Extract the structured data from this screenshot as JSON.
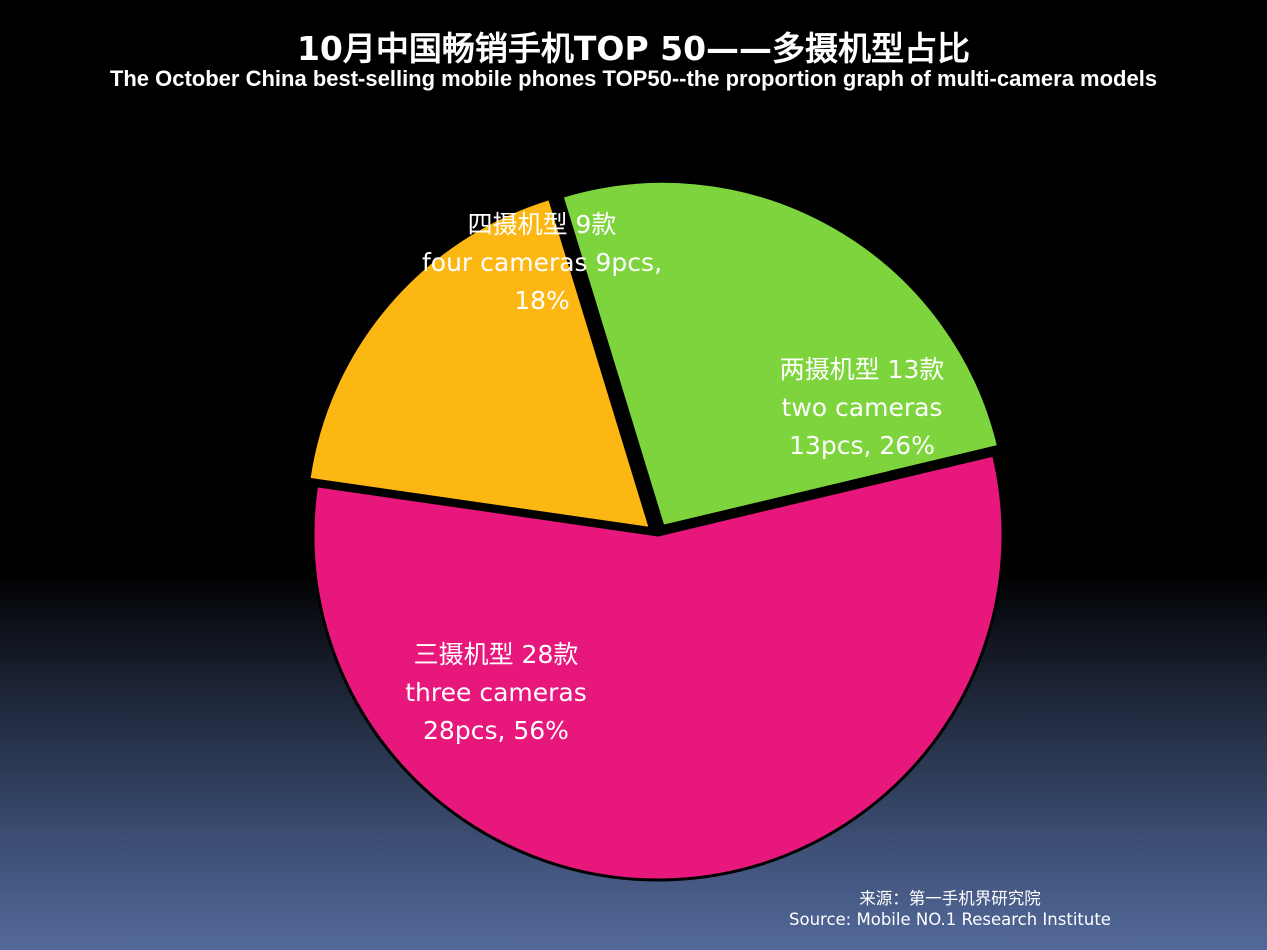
{
  "title": "10月中国畅销手机TOP 50——多摄机型占比",
  "subtitle": "The October China best-selling mobile phones TOP50--the proportion graph of multi-camera models",
  "chart_data": {
    "type": "pie",
    "title": "10月中国畅销手机TOP 50——多摄机型占比",
    "subtitle": "The October China best-selling mobile phones TOP50--the proportion graph of multi-camera models",
    "total": 50,
    "slices": [
      {
        "key": "two",
        "value": 13,
        "percent": 26,
        "color": "#7ed43c",
        "exploded": true,
        "label_lines": [
          "两摄机型 13款",
          "two cameras",
          "13pcs,  26%"
        ]
      },
      {
        "key": "three",
        "value": 28,
        "percent": 56,
        "color": "#e8177c",
        "exploded": false,
        "label_lines": [
          "三摄机型 28款",
          "three cameras",
          "28pcs, 56%"
        ]
      },
      {
        "key": "four",
        "value": 9,
        "percent": 18,
        "color": "#fdb713",
        "exploded": true,
        "label_lines": [
          "四摄机型 9款",
          "four cameras 9pcs,",
          "18%"
        ]
      }
    ]
  },
  "source": {
    "line1": "来源：第一手机界研究院",
    "line2": "Source: Mobile NO.1 Research Institute"
  }
}
